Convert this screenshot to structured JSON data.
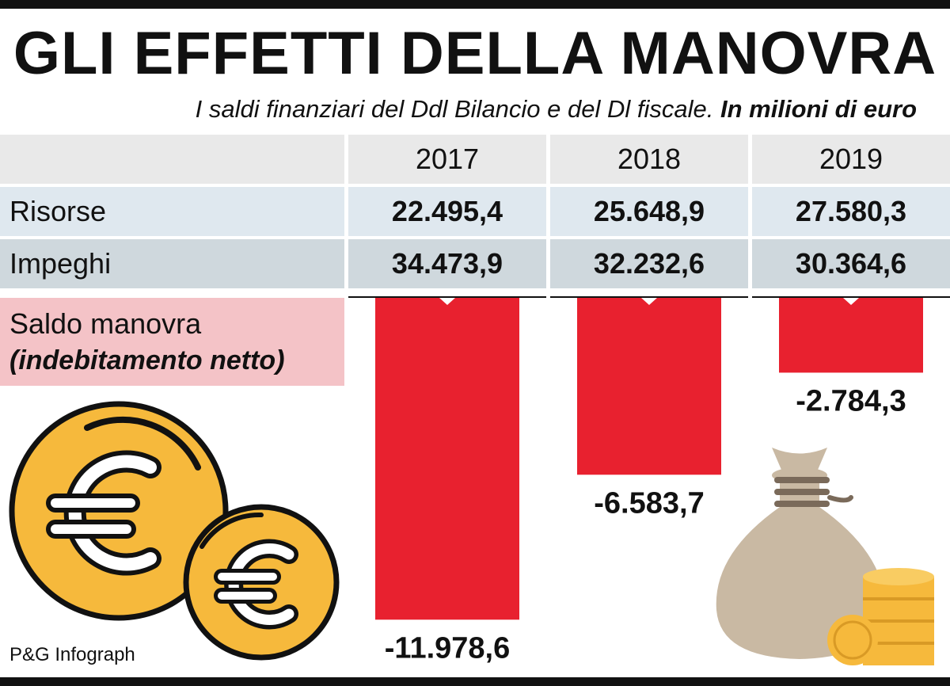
{
  "title": "GLI EFFETTI DELLA MANOVRA",
  "subtitle": {
    "main": "I saldi finanziari del Ddl Bilancio e del Dl fiscale.",
    "unit": "In milioni di euro"
  },
  "table": {
    "years": [
      "2017",
      "2018",
      "2019"
    ],
    "rows": [
      {
        "label": "Risorse",
        "values": [
          "22.495,4",
          "25.648,9",
          "27.580,3"
        ]
      },
      {
        "label": "Impeghi",
        "values": [
          "34.473,9",
          "32.232,6",
          "30.364,6"
        ]
      }
    ],
    "saldo_label": "Saldo manovra",
    "saldo_sublabel": "(indebitamento netto)"
  },
  "chart_data": {
    "type": "bar",
    "categories": [
      "2017",
      "2018",
      "2019"
    ],
    "values": [
      -11978.6,
      -6583.7,
      -2784.3
    ],
    "value_labels": [
      "-11.978,6",
      "-6.583,7",
      "-2.784,3"
    ],
    "ylabel": "Saldo manovra (indebitamento netto)",
    "ylim": [
      -12000,
      0
    ]
  },
  "colors": {
    "bar": "#e8212f",
    "header_bg": "#e9e9e9",
    "risorse_bg": "#dfe8ef",
    "impeghi_bg": "#cfd8dd",
    "saldo_bg": "#f4c3c7",
    "coin": "#f6b93c",
    "bag": "#c9b9a3"
  },
  "icons": [
    "euro-coin-icon",
    "euro-coin-small-icon",
    "money-bag-icon",
    "coin-stack-icon"
  ],
  "credit": "P&G Infograph"
}
